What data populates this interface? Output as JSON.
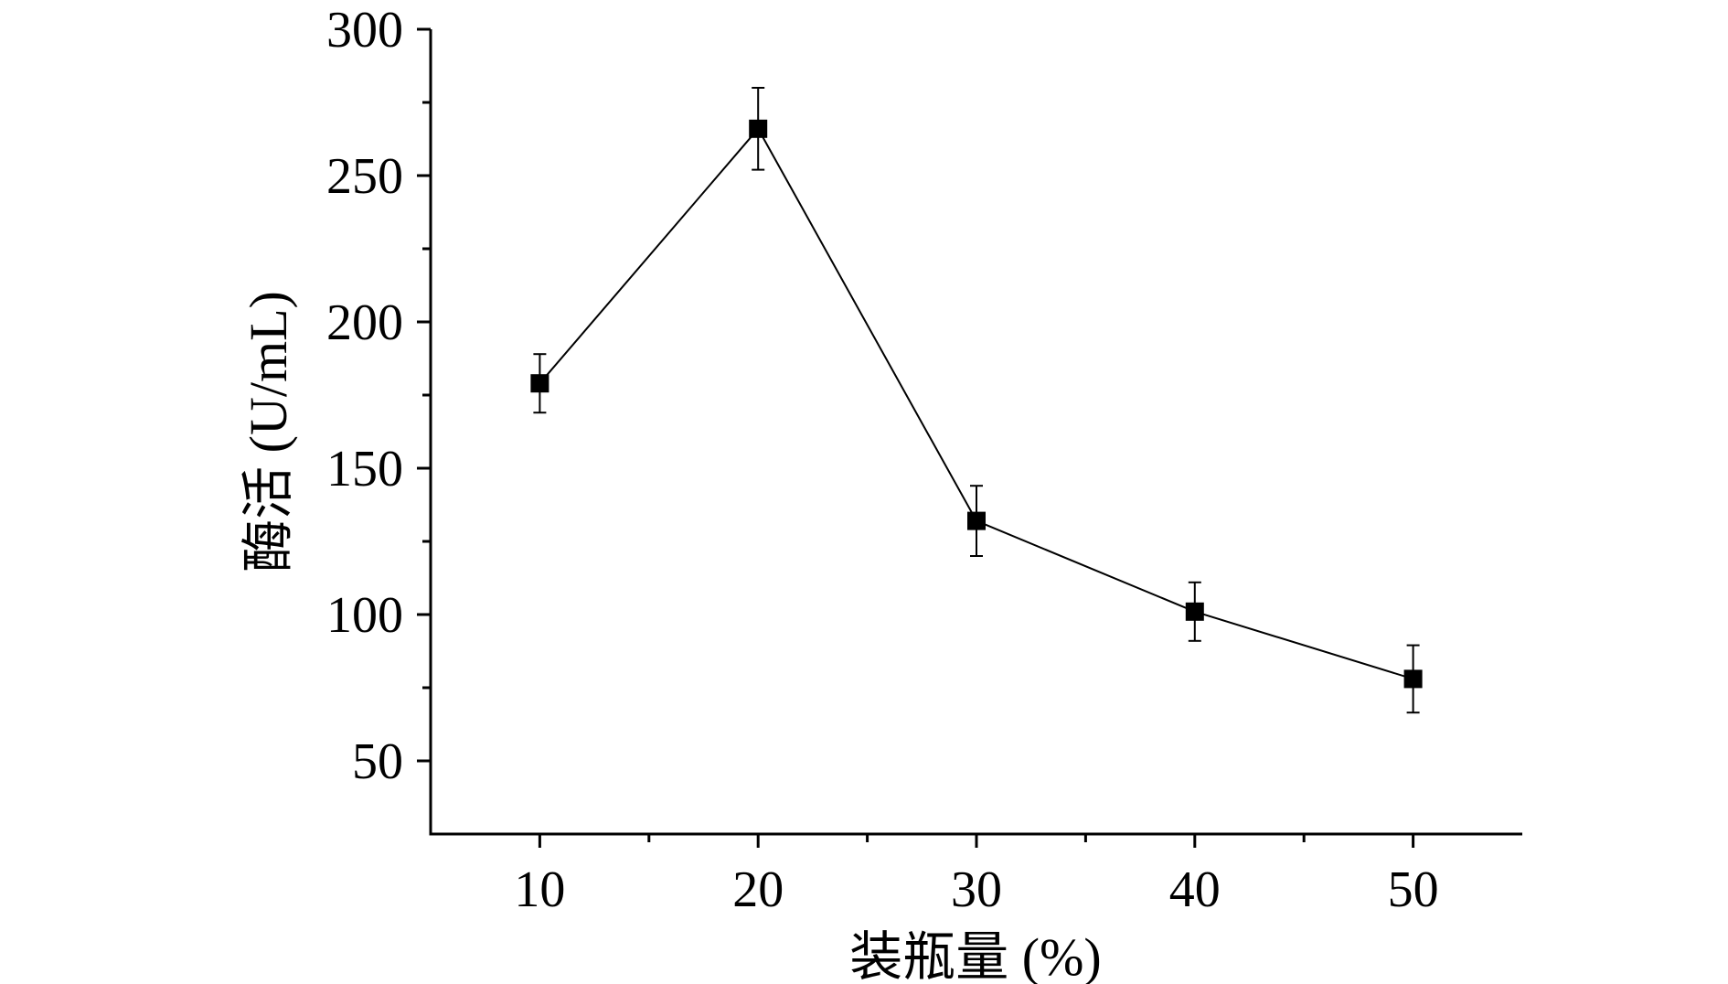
{
  "chart_data": {
    "type": "line",
    "title": "",
    "xlabel": "装瓶量 (%)",
    "ylabel": "酶活 (U/mL)",
    "x": [
      10,
      20,
      30,
      40,
      50
    ],
    "xlim": [
      5,
      55
    ],
    "ylim": [
      25,
      300
    ],
    "xticks": [
      10,
      20,
      30,
      40,
      50
    ],
    "xticks_minor": [
      15,
      25,
      35,
      45
    ],
    "yticks": [
      50,
      100,
      150,
      200,
      250,
      300
    ],
    "yticks_minor": [
      75,
      125,
      175,
      225,
      275
    ],
    "grid": false,
    "legend": "none",
    "series": [
      {
        "values": [
          179,
          266,
          132,
          101,
          78
        ],
        "errors": [
          10,
          14,
          12,
          10,
          11.5
        ],
        "marker": "square",
        "color": "#000000"
      }
    ]
  }
}
